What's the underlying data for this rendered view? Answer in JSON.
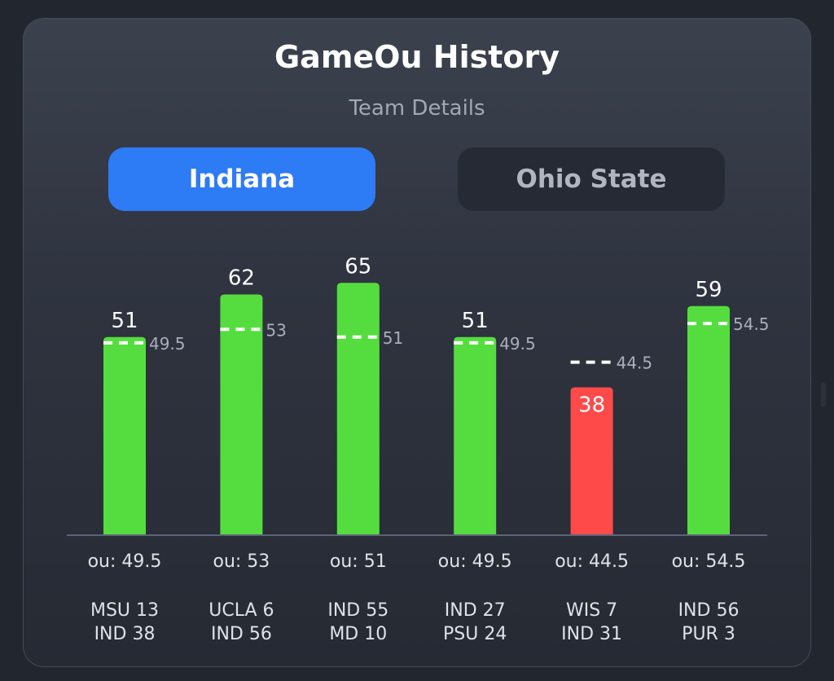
{
  "header": {
    "title": "GameOu History",
    "subtitle": "Team Details"
  },
  "tabs": [
    {
      "label": "Indiana",
      "active": true
    },
    {
      "label": "Ohio State",
      "active": false
    }
  ],
  "colors": {
    "over": "#55dd3f",
    "under": "#ff4a4a",
    "active_tab": "#2e7bf6",
    "ou_line": "#ffffff"
  },
  "chart_data": {
    "type": "bar",
    "title": "GameOu History",
    "categories": [
      "MSU 13\nIND 38",
      "UCLA 6\nIND 56",
      "IND 55\nMD 10",
      "IND 27\nPSU 24",
      "WIS 7\nIND 31",
      "IND 56\nPUR 3"
    ],
    "category_lines": [
      [
        "MSU 13",
        "IND 38"
      ],
      [
        "UCLA 6",
        "IND 56"
      ],
      [
        "IND 55",
        "MD 10"
      ],
      [
        "IND 27",
        "PSU 24"
      ],
      [
        "WIS 7",
        "IND 31"
      ],
      [
        "IND 56",
        "PUR 3"
      ]
    ],
    "series": [
      {
        "values": [
          51,
          62,
          65,
          51,
          38,
          59
        ]
      },
      {
        "values": [
          49.5,
          53,
          51,
          49.5,
          44.5,
          54.5
        ],
        "style": "dashed-line"
      }
    ],
    "value_labels": [
      "51",
      "62",
      "65",
      "51",
      "38",
      "59"
    ],
    "ou_labels": [
      "49.5",
      "53",
      "51",
      "49.5",
      "44.5",
      "54.5"
    ],
    "ou_axis_labels": [
      "ou: 49.5",
      "ou: 53",
      "ou: 51",
      "ou: 49.5",
      "ou: 44.5",
      "ou: 54.5"
    ],
    "ylim": [
      0,
      70
    ],
    "grid": false
  }
}
